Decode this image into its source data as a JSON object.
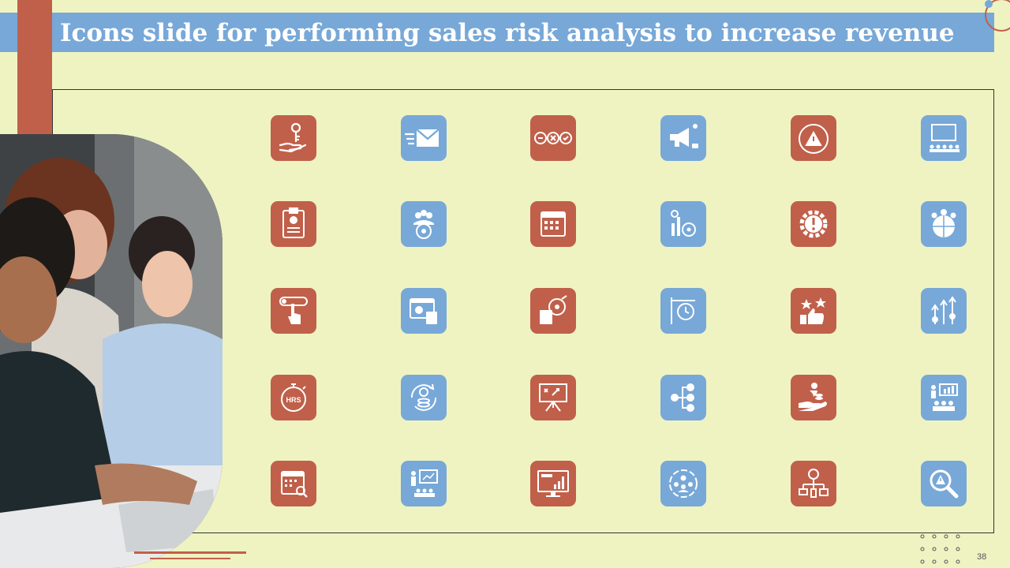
{
  "slide": {
    "title": "Icons slide for performing sales risk analysis to increase revenue",
    "page_number": "38",
    "colors": {
      "background": "#eff3c2",
      "accent_red": "#c0604a",
      "accent_blue": "#77a8d8"
    }
  },
  "icons": [
    "hand-key-icon",
    "email-send-icon",
    "checklist-circles-icon",
    "megaphone-icon",
    "risk-gauge-icon",
    "presentation-audience-icon",
    "clipboard-info-icon",
    "team-target-icon",
    "calendar-icon",
    "target-chart-icon",
    "gear-warning-icon",
    "global-team-icon",
    "finger-toggle-icon",
    "finance-calculator-icon",
    "target-document-icon",
    "clock-signpost-icon",
    "rating-thumbs-up-icon",
    "growth-arrows-gears-icon",
    "stopwatch-hrs-icon",
    "dollar-cycle-icon",
    "strategy-board-icon",
    "flowchart-nodes-icon",
    "hand-plant-coins-icon",
    "team-presentation-chart-icon",
    "calendar-search-icon",
    "presenter-board-icon",
    "monitor-chart-icon",
    "team-circle-icon",
    "network-devices-icon",
    "search-warning-icon"
  ],
  "stopwatch_label": "HRS"
}
